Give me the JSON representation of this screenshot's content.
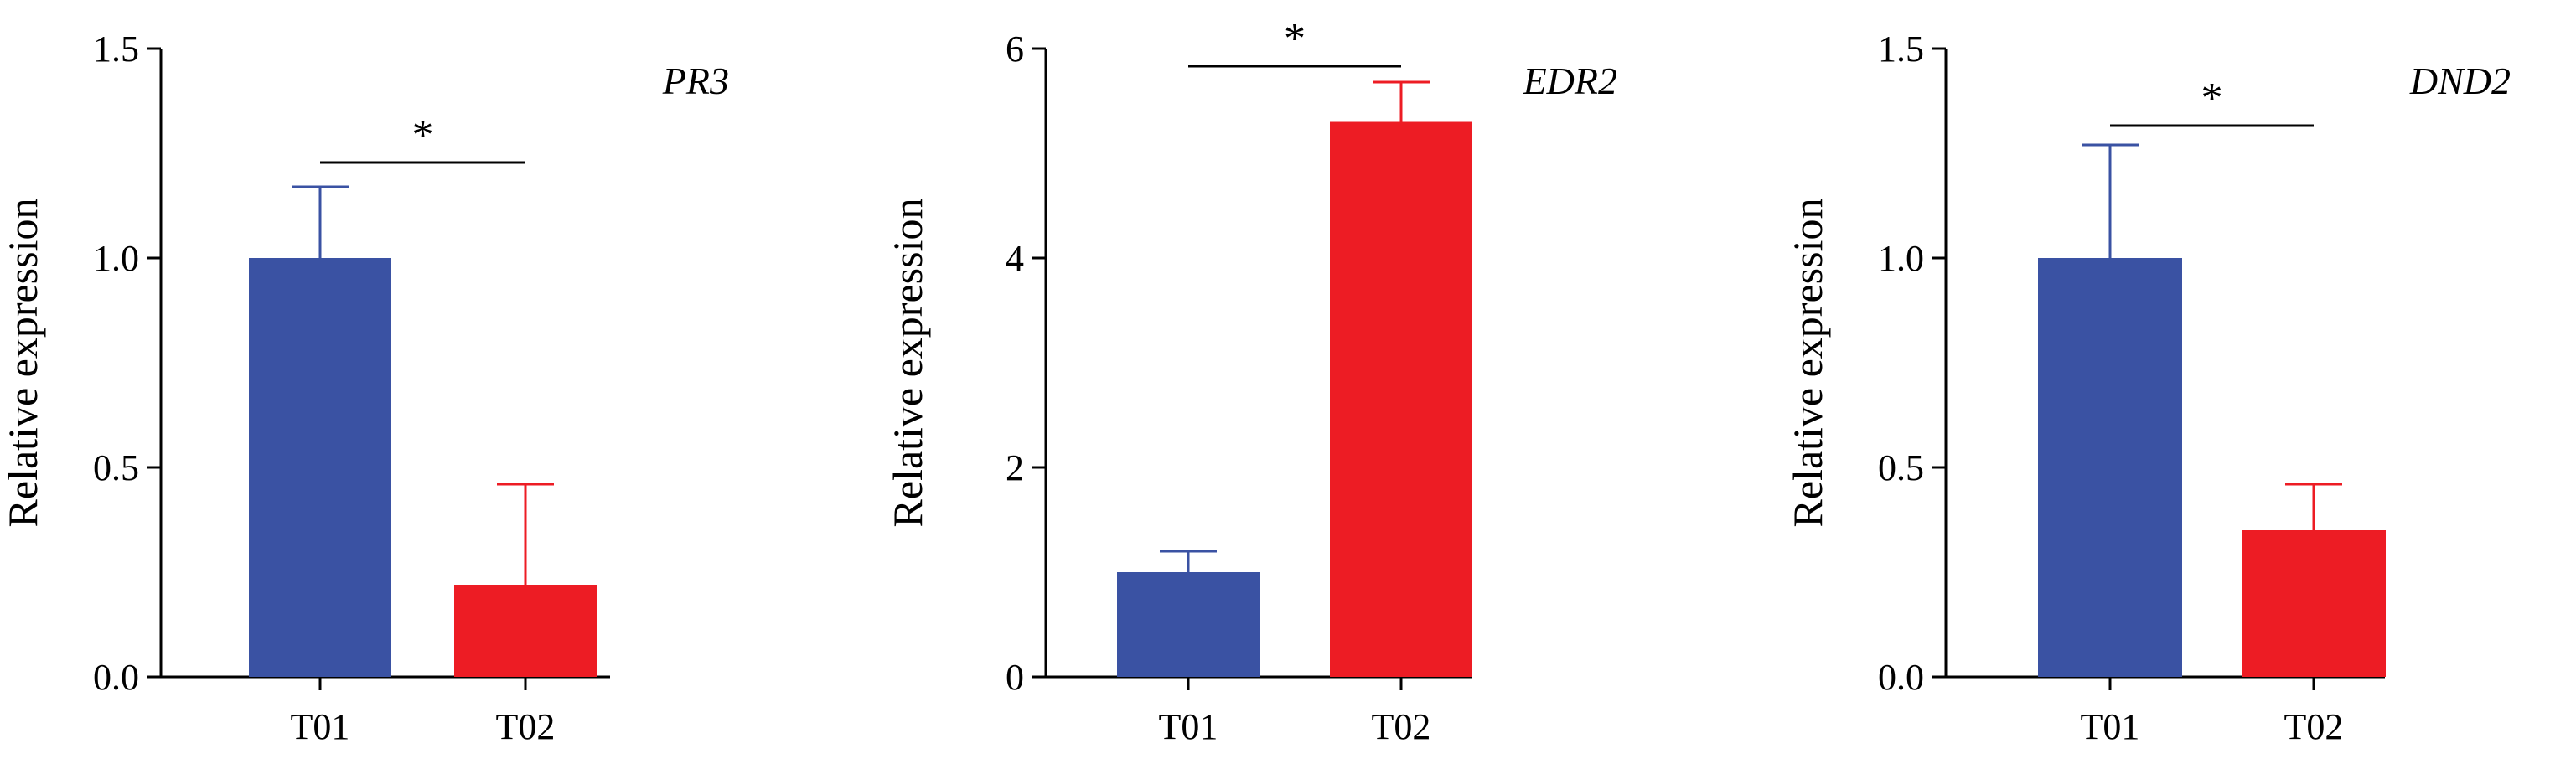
{
  "chart_data": [
    {
      "type": "bar",
      "title": "PR3",
      "xlabel": "",
      "ylabel": "Relative expression",
      "ylim": [
        0,
        1.5
      ],
      "yticks": [
        "0.0",
        "0.5",
        "1.0",
        "1.5"
      ],
      "ytick_values": [
        0,
        0.5,
        1.0,
        1.5
      ],
      "categories": [
        "T01",
        "T02"
      ],
      "values": [
        1.0,
        0.22
      ],
      "error_upper": [
        1.17,
        0.46
      ],
      "bar_colors": [
        "#3a52a3",
        "#ed1c24"
      ],
      "significance": {
        "from": "T01",
        "to": "T02",
        "label": "*"
      },
      "grid": false
    },
    {
      "type": "bar",
      "title": "EDR2",
      "xlabel": "",
      "ylabel": "Relative expression",
      "ylim": [
        0,
        6
      ],
      "yticks": [
        "0",
        "2",
        "4",
        "6"
      ],
      "ytick_values": [
        0,
        2,
        4,
        6
      ],
      "categories": [
        "T01",
        "T02"
      ],
      "values": [
        1.0,
        5.3
      ],
      "error_upper": [
        1.2,
        5.68
      ],
      "bar_colors": [
        "#3a52a3",
        "#ed1c24"
      ],
      "significance": {
        "from": "T01",
        "to": "T02",
        "label": "*"
      },
      "grid": false
    },
    {
      "type": "bar",
      "title": "DND2",
      "xlabel": "",
      "ylabel": "Relative expression",
      "ylim": [
        0,
        1.5
      ],
      "yticks": [
        "0.0",
        "0.5",
        "1.0",
        "1.5"
      ],
      "ytick_values": [
        0,
        0.5,
        1.0,
        1.5
      ],
      "categories": [
        "T01",
        "T02"
      ],
      "values": [
        1.0,
        0.35
      ],
      "error_upper": [
        1.27,
        0.46
      ],
      "bar_colors": [
        "#3a52a3",
        "#ed1c24"
      ],
      "significance": {
        "from": "T01",
        "to": "T02",
        "label": "*"
      },
      "grid": false
    }
  ]
}
